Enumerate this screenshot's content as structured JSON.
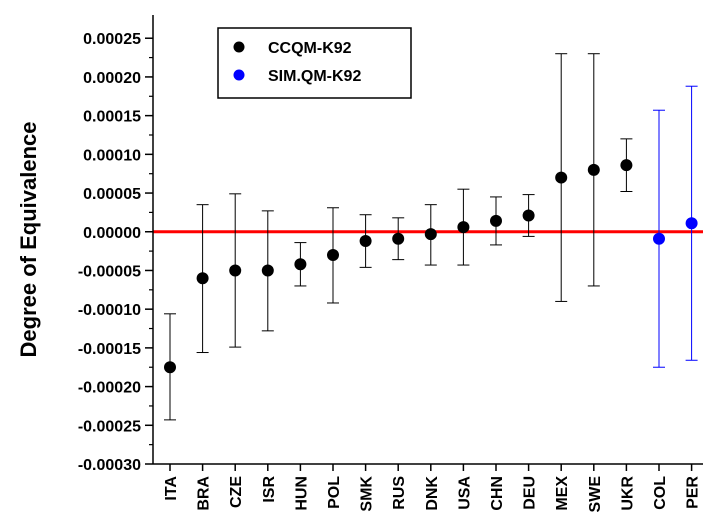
{
  "chart_data": {
    "type": "scatter",
    "ylabel": "Degree of Equivalence",
    "xlabel": "",
    "ylim": [
      -0.0003,
      0.00028
    ],
    "y_ticks": [
      "0.00025",
      "0.00020",
      "0.00015",
      "0.00010",
      "0.00005",
      "0.00000",
      "-0.00005",
      "-0.00010",
      "-0.00015",
      "-0.00020",
      "-0.00025",
      "-0.00030"
    ],
    "y_tick_values": [
      0.00025,
      0.0002,
      0.00015,
      0.0001,
      5e-05,
      0,
      -5e-05,
      -0.0001,
      -0.00015,
      -0.0002,
      -0.00025,
      -0.0003
    ],
    "reference_line": {
      "y": 0,
      "color": "#ff0000"
    },
    "grid": false,
    "legend_position": "top-left",
    "categories": [
      "ITA",
      "BRA",
      "CZE",
      "ISR",
      "HUN",
      "POL",
      "SMK",
      "RUS",
      "DNK",
      "USA",
      "CHN",
      "DEU",
      "MEX",
      "SWE",
      "UKR",
      "COL",
      "PER"
    ],
    "series": [
      {
        "name": "CCQM-K92",
        "color": "#000000",
        "points": [
          {
            "x": "ITA",
            "y": -0.000175,
            "low": -0.000243,
            "high": -0.000106
          },
          {
            "x": "BRA",
            "y": -6e-05,
            "low": -0.000156,
            "high": 3.5e-05
          },
          {
            "x": "CZE",
            "y": -5e-05,
            "low": -0.000149,
            "high": 4.9e-05
          },
          {
            "x": "ISR",
            "y": -5e-05,
            "low": -0.000128,
            "high": 2.7e-05
          },
          {
            "x": "HUN",
            "y": -4.2e-05,
            "low": -7e-05,
            "high": -1.4e-05
          },
          {
            "x": "POL",
            "y": -3e-05,
            "low": -9.2e-05,
            "high": 3.1e-05
          },
          {
            "x": "SMK",
            "y": -1.2e-05,
            "low": -4.6e-05,
            "high": 2.2e-05
          },
          {
            "x": "RUS",
            "y": -9e-06,
            "low": -3.6e-05,
            "high": 1.8e-05
          },
          {
            "x": "DNK",
            "y": -3e-06,
            "low": -4.3e-05,
            "high": 3.5e-05
          },
          {
            "x": "USA",
            "y": 6e-06,
            "low": -4.3e-05,
            "high": 5.5e-05
          },
          {
            "x": "CHN",
            "y": 1.4e-05,
            "low": -1.7e-05,
            "high": 4.5e-05
          },
          {
            "x": "DEU",
            "y": 2.1e-05,
            "low": -6e-06,
            "high": 4.8e-05
          },
          {
            "x": "MEX",
            "y": 7e-05,
            "low": -9e-05,
            "high": 0.00023
          },
          {
            "x": "SWE",
            "y": 8e-05,
            "low": -7e-05,
            "high": 0.00023
          },
          {
            "x": "UKR",
            "y": 8.6e-05,
            "low": 5.2e-05,
            "high": 0.00012
          }
        ]
      },
      {
        "name": "SIM.QM-K92",
        "color": "#0000ff",
        "points": [
          {
            "x": "COL",
            "y": -9e-06,
            "low": -0.000175,
            "high": 0.000157
          },
          {
            "x": "PER",
            "y": 1.1e-05,
            "low": -0.000166,
            "high": 0.000188
          }
        ]
      }
    ]
  }
}
